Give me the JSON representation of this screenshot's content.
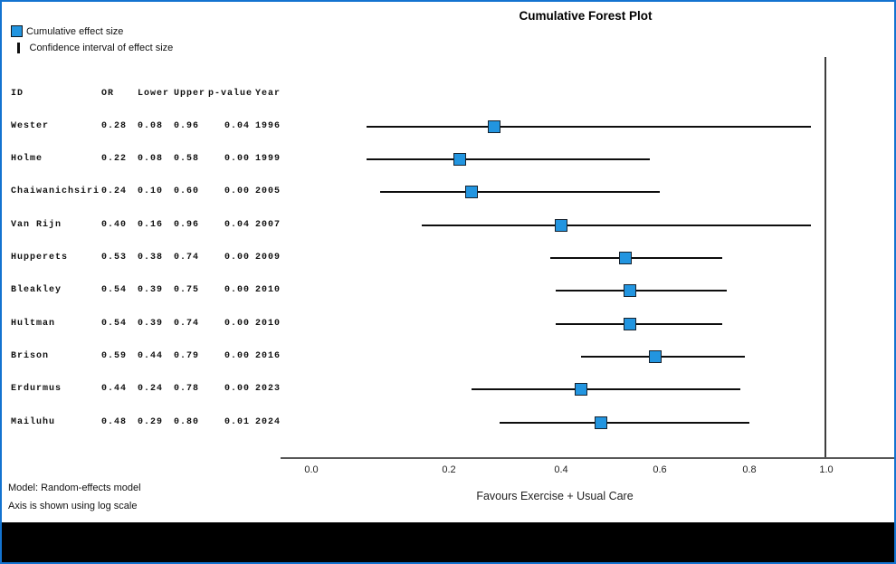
{
  "chart_data": {
    "type": "forest",
    "title": "Cumulative Forest Plot",
    "legend": [
      {
        "swatch": "square",
        "label": "Cumulative effect size"
      },
      {
        "swatch": "ci-line",
        "label": "Confidence interval of effect size"
      }
    ],
    "columns": [
      "ID",
      "OR",
      "Lower",
      "Upper",
      "p-value",
      "Year"
    ],
    "studies": [
      {
        "id": "Wester",
        "or": "0.28",
        "lower": "0.08",
        "upper": "0.96",
        "p": "0.04",
        "year": "1996"
      },
      {
        "id": "Holme",
        "or": "0.22",
        "lower": "0.08",
        "upper": "0.58",
        "p": "0.00",
        "year": "1999"
      },
      {
        "id": "Chaiwanichsiri",
        "or": "0.24",
        "lower": "0.10",
        "upper": "0.60",
        "p": "0.00",
        "year": "2005"
      },
      {
        "id": "Van Rijn",
        "or": "0.40",
        "lower": "0.16",
        "upper": "0.96",
        "p": "0.04",
        "year": "2007"
      },
      {
        "id": "Hupperets",
        "or": "0.53",
        "lower": "0.38",
        "upper": "0.74",
        "p": "0.00",
        "year": "2009"
      },
      {
        "id": "Bleakley",
        "or": "0.54",
        "lower": "0.39",
        "upper": "0.75",
        "p": "0.00",
        "year": "2010"
      },
      {
        "id": "Hultman",
        "or": "0.54",
        "lower": "0.39",
        "upper": "0.74",
        "p": "0.00",
        "year": "2010"
      },
      {
        "id": "Brison",
        "or": "0.59",
        "lower": "0.44",
        "upper": "0.79",
        "p": "0.00",
        "year": "2016"
      },
      {
        "id": "Erdurmus",
        "or": "0.44",
        "lower": "0.24",
        "upper": "0.78",
        "p": "0.00",
        "year": "2023"
      },
      {
        "id": "Mailuhu",
        "or": "0.48",
        "lower": "0.29",
        "upper": "0.80",
        "p": "0.01",
        "year": "2024"
      }
    ],
    "axis": {
      "tick_labels": [
        "0.0",
        "0.2",
        "0.4",
        "0.6",
        "0.8",
        "1.0"
      ],
      "range": [
        0.0,
        1.0
      ],
      "scale": "log",
      "reference_line_at": "1.0",
      "xlabel": "Favours Exercise + Usual Care"
    },
    "footnotes": [
      "Model: Random-effects model",
      "Axis is shown using log scale"
    ],
    "colors": {
      "marker_fill": "#2295E0",
      "marker_border": "#16222E",
      "ci_line": "#0D0D0D",
      "frame_border": "#1373D0",
      "bottom_bar": "#000000"
    }
  }
}
